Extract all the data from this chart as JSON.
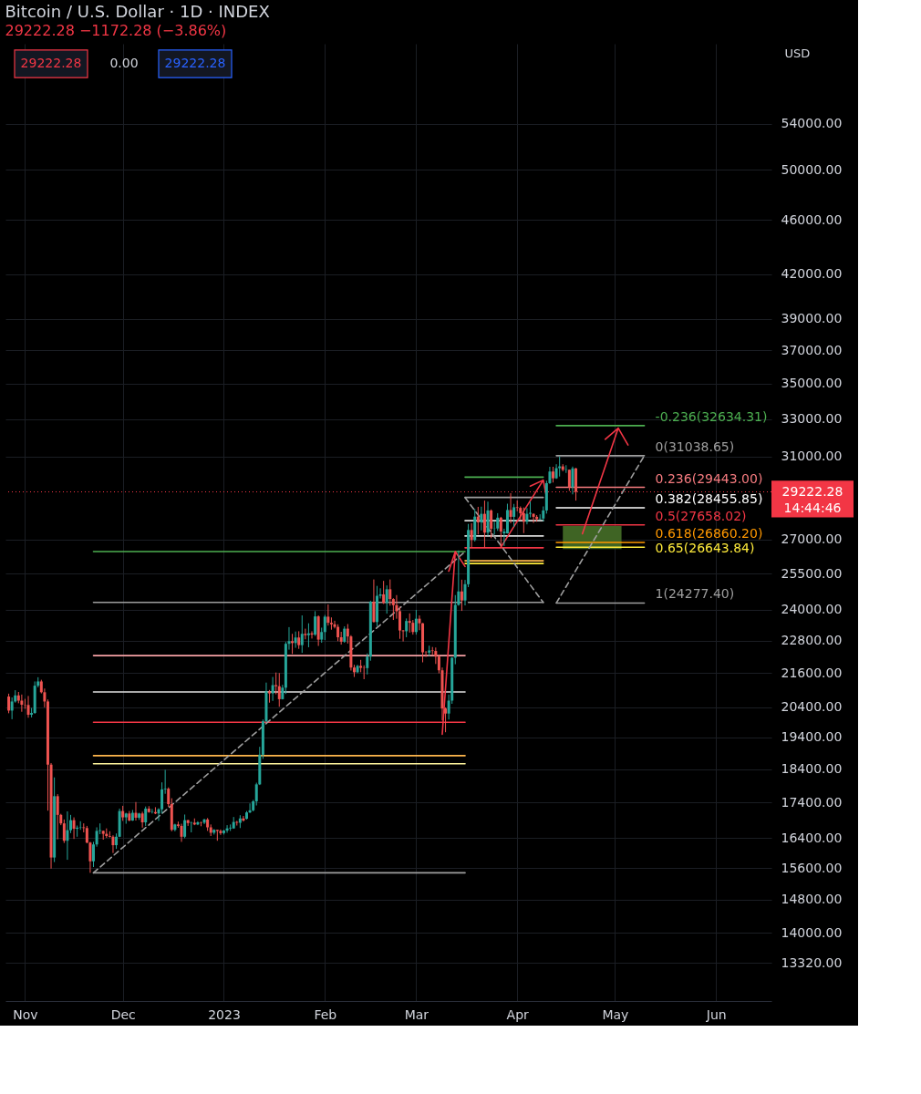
{
  "chart_data": {
    "type": "candlestick",
    "title": "Bitcoin / U.S. Dollar · 1D · INDEX",
    "subtitle": "29222.28 −1172.28 (−3.86%)",
    "ylabel": "USD",
    "annotations": [
      "29222.28",
      "0.00",
      "29222.28",
      "14:44:46"
    ],
    "xlim": [
      "2022-10-26",
      "2023-06-18"
    ],
    "xticks": [
      {
        "value": "2022-11-01",
        "label": "Nov"
      },
      {
        "value": "2022-12-01",
        "label": "Dec"
      },
      {
        "value": "2023-01-01",
        "label": "2023"
      },
      {
        "value": "2023-02-01",
        "label": "Feb"
      },
      {
        "value": "2023-03-01",
        "label": "Mar"
      },
      {
        "value": "2023-04-01",
        "label": "Apr"
      },
      {
        "value": "2023-05-01",
        "label": "May"
      },
      {
        "value": "2023-06-01",
        "label": "Jun"
      }
    ],
    "ylim": [
      12500,
      61700
    ],
    "log": true,
    "grid": true,
    "yticks": [
      {
        "value": 13320,
        "label": "13320.00"
      },
      {
        "value": 14000,
        "label": "14000.00"
      },
      {
        "value": 14800,
        "label": "14800.00"
      },
      {
        "value": 15600,
        "label": "15600.00"
      },
      {
        "value": 16400,
        "label": "16400.00"
      },
      {
        "value": 17400,
        "label": "17400.00"
      },
      {
        "value": 18400,
        "label": "18400.00"
      },
      {
        "value": 19400,
        "label": "19400.00"
      },
      {
        "value": 20400,
        "label": "20400.00"
      },
      {
        "value": 21600,
        "label": "21600.00"
      },
      {
        "value": 22800,
        "label": "22800.00"
      },
      {
        "value": 24000,
        "label": "24000.00"
      },
      {
        "value": 25500,
        "label": "25500.00"
      },
      {
        "value": 27000,
        "label": "27000.00"
      },
      {
        "value": 31000,
        "label": "31000.00"
      },
      {
        "value": 33000,
        "label": "33000.00"
      },
      {
        "value": 35000,
        "label": "35000.00"
      },
      {
        "value": 37000,
        "label": "37000.00"
      },
      {
        "value": 39000,
        "label": "39000.00"
      },
      {
        "value": 42000,
        "label": "42000.00"
      },
      {
        "value": 46000,
        "label": "46000.00"
      },
      {
        "value": 50000,
        "label": "50000.00"
      },
      {
        "value": 54000,
        "label": "54000.00"
      }
    ],
    "ref_lines": [
      {
        "axis": "y",
        "value": 29222.28,
        "label": "29222.28",
        "color": "#f23645",
        "line_style": "dotted"
      }
    ],
    "series": [
      {
        "type": "line",
        "color": "#3f6424",
        "x": [
          "2023-04-15",
          "2023-05-03"
        ],
        "values": [
          null,
          null
        ],
        "lower": [
          26560,
          26560
        ],
        "upper": [
          27600,
          27600
        ]
      },
      {
        "type": "line",
        "color": "#9e9e9e",
        "x": [
          "2022-11-22",
          "2023-03-16"
        ],
        "values": [
          15480,
          15480
        ]
      },
      {
        "type": "line",
        "color": "#fff59d",
        "x": [
          "2022-11-22",
          "2023-03-16"
        ],
        "values": [
          18570,
          18570
        ]
      },
      {
        "type": "line",
        "color": "#ffb74d",
        "x": [
          "2022-11-22",
          "2023-03-16"
        ],
        "values": [
          18820,
          18820
        ]
      },
      {
        "type": "line",
        "color": "#f23645",
        "x": [
          "2022-11-22",
          "2023-03-16"
        ],
        "values": [
          19900,
          19900
        ]
      },
      {
        "type": "line",
        "color": "#e0e0e0",
        "x": [
          "2022-11-22",
          "2023-03-16"
        ],
        "values": [
          20930,
          20930
        ]
      },
      {
        "type": "line",
        "color": "#f7a1a5",
        "x": [
          "2022-11-22",
          "2023-03-16"
        ],
        "values": [
          22240,
          22240
        ]
      },
      {
        "type": "line",
        "color": "#9e9e9e",
        "x": [
          "2022-11-22",
          "2023-03-15"
        ],
        "values": [
          24300,
          24300
        ]
      },
      {
        "type": "line",
        "color": "#4caf50",
        "x": [
          "2022-11-22",
          "2023-03-16"
        ],
        "values": [
          26450,
          26450
        ]
      },
      {
        "type": "line",
        "color": "#9e9e9e",
        "line_style": "dashed",
        "x": [
          "2022-11-22",
          "2023-03-16"
        ],
        "values": [
          15480,
          26450
        ]
      },
      {
        "type": "line",
        "color": "#4caf50",
        "x": [
          "2023-03-16",
          "2023-04-09"
        ],
        "values": [
          29950,
          29950
        ]
      },
      {
        "type": "line",
        "color": "#9e9e9e",
        "x": [
          "2023-03-16",
          "2023-04-09"
        ],
        "values": [
          28950,
          28950
        ]
      },
      {
        "type": "line",
        "color": "#d9d9d9",
        "x": [
          "2023-03-16",
          "2023-04-09"
        ],
        "values": [
          27850,
          27850
        ]
      },
      {
        "type": "line",
        "color": "#d9d9d9",
        "x": [
          "2023-03-16",
          "2023-04-09"
        ],
        "values": [
          27150,
          27150
        ]
      },
      {
        "type": "line",
        "color": "#f23645",
        "x": [
          "2023-03-16",
          "2023-04-09"
        ],
        "values": [
          26620,
          26620
        ]
      },
      {
        "type": "line",
        "color": "#ffb74d",
        "x": [
          "2023-03-16",
          "2023-04-09"
        ],
        "values": [
          26050,
          26050
        ]
      },
      {
        "type": "line",
        "color": "#ffeb3b",
        "x": [
          "2023-03-16",
          "2023-04-09"
        ],
        "values": [
          25930,
          25930
        ]
      },
      {
        "type": "line",
        "color": "#9e9e9e",
        "x": [
          "2023-03-17",
          "2023-04-09"
        ],
        "values": [
          24300,
          24300
        ]
      },
      {
        "type": "line",
        "color": "#9e9e9e",
        "line_style": "dashed",
        "x": [
          "2023-03-16",
          "2023-04-09"
        ],
        "values": [
          28950,
          24300
        ]
      },
      {
        "type": "line",
        "name": "-0.236(32634.31)",
        "color": "#4caf50",
        "x": [
          "2023-04-13",
          "2023-05-10"
        ],
        "values": [
          32634.31,
          32634.31
        ]
      },
      {
        "type": "line",
        "name": "0(31038.65)",
        "color": "#9e9e9e",
        "x": [
          "2023-04-13",
          "2023-05-10"
        ],
        "values": [
          31038.65,
          31038.65
        ]
      },
      {
        "type": "line",
        "name": "0.236(29443.00)",
        "color": "#f77c80",
        "x": [
          "2023-04-13",
          "2023-05-10"
        ],
        "values": [
          29443.0,
          29443.0
        ]
      },
      {
        "type": "line",
        "name": "0.382(28455.85)",
        "color": "#ffffff",
        "x": [
          "2023-04-13",
          "2023-05-10"
        ],
        "values": [
          28455.85,
          28455.85
        ]
      },
      {
        "type": "line",
        "name": "0.5(27658.02)",
        "color": "#f23645",
        "x": [
          "2023-04-13",
          "2023-05-10"
        ],
        "values": [
          27658.02,
          27658.02
        ]
      },
      {
        "type": "line",
        "name": "0.618(26860.20)",
        "color": "#ff9800",
        "x": [
          "2023-04-13",
          "2023-05-10"
        ],
        "values": [
          26860.2,
          26860.2
        ]
      },
      {
        "type": "line",
        "name": "0.65(26643.84)",
        "color": "#ffeb3b",
        "x": [
          "2023-04-13",
          "2023-05-10"
        ],
        "values": [
          26643.84,
          26643.84
        ]
      },
      {
        "type": "line",
        "name": "1(24277.40)",
        "color": "#9e9e9e",
        "x": [
          "2023-04-13",
          "2023-05-10"
        ],
        "values": [
          24277.4,
          24277.4
        ]
      },
      {
        "type": "line",
        "color": "#9e9e9e",
        "line_style": "dashed",
        "x": [
          "2023-04-13",
          "2023-05-10"
        ],
        "values": [
          24277.4,
          31038.65
        ]
      },
      {
        "color": "#26a69a",
        "x": [
          "2022-10-28",
          "2022-10-29",
          "2022-11-03",
          "2022-11-04",
          "2022-11-05",
          "2022-11-10",
          "2022-11-14",
          "2022-11-15",
          "2022-11-17",
          "2022-11-18",
          "2022-11-22",
          "2022-11-23",
          "2022-11-24",
          "2022-11-29",
          "2022-11-30",
          "2022-12-02",
          "2022-12-04",
          "2022-12-06",
          "2022-12-08",
          "2022-12-10",
          "2022-12-12",
          "2022-12-13",
          "2022-12-14",
          "2022-12-17",
          "2022-12-20",
          "2022-12-22",
          "2022-12-24",
          "2022-12-26",
          "2022-12-29",
          "2023-01-01",
          "2023-01-02",
          "2023-01-03",
          "2023-01-04",
          "2023-01-06",
          "2023-01-08",
          "2023-01-09",
          "2023-01-10",
          "2023-01-11",
          "2023-01-12",
          "2023-01-13",
          "2023-01-14",
          "2023-01-16",
          "2023-01-19",
          "2023-01-20",
          "2023-01-21",
          "2023-01-23",
          "2023-01-25",
          "2023-01-27",
          "2023-01-29",
          "2023-01-31",
          "2023-02-01",
          "2023-02-07",
          "2023-02-11",
          "2023-02-14",
          "2023-02-15",
          "2023-02-17",
          "2023-02-18",
          "2023-02-20",
          "2023-02-26",
          "2023-03-01",
          "2023-03-05",
          "2023-03-11",
          "2023-03-12",
          "2023-03-13",
          "2023-03-14",
          "2023-03-16",
          "2023-03-17",
          "2023-03-19",
          "2023-03-21",
          "2023-03-23",
          "2023-03-25",
          "2023-03-26",
          "2023-03-28",
          "2023-03-29",
          "2023-03-31",
          "2023-04-04",
          "2023-04-05",
          "2023-04-08",
          "2023-04-09",
          "2023-04-10",
          "2023-04-11",
          "2023-04-13",
          "2023-04-14",
          "2023-04-16",
          "2023-04-18"
        ],
        "ohlc": [
          [
            20290,
            20740,
            20000,
            20600
          ],
          [
            20600,
            20990,
            20560,
            20810
          ],
          [
            20150,
            20380,
            20060,
            20210
          ],
          [
            20210,
            21300,
            20180,
            21150
          ],
          [
            21150,
            21450,
            21090,
            21300
          ],
          [
            15880,
            18150,
            15760,
            17590
          ],
          [
            16330,
            17150,
            15820,
            16620
          ],
          [
            16620,
            17050,
            16540,
            16900
          ],
          [
            16660,
            16750,
            16440,
            16690
          ],
          [
            16690,
            16870,
            16630,
            16700
          ],
          [
            15780,
            16300,
            15630,
            16230
          ],
          [
            16230,
            16700,
            16170,
            16600
          ],
          [
            16600,
            16810,
            16510,
            16620
          ],
          [
            16210,
            16530,
            16110,
            16440
          ],
          [
            16440,
            17230,
            16430,
            17160
          ],
          [
            16980,
            17110,
            16800,
            17090
          ],
          [
            16890,
            17190,
            16880,
            17110
          ],
          [
            16970,
            17110,
            16910,
            17090
          ],
          [
            16840,
            17290,
            16740,
            17230
          ],
          [
            17130,
            17220,
            17090,
            17140
          ],
          [
            17090,
            17240,
            16880,
            17210
          ],
          [
            17210,
            18000,
            17090,
            17790
          ],
          [
            17790,
            18380,
            17660,
            17810
          ],
          [
            16630,
            16800,
            16590,
            16780
          ],
          [
            16440,
            17060,
            16400,
            16900
          ],
          [
            16820,
            16860,
            16560,
            16830
          ],
          [
            16780,
            16870,
            16760,
            16840
          ],
          [
            16830,
            16940,
            16790,
            16920
          ],
          [
            16550,
            16650,
            16500,
            16630
          ],
          [
            16540,
            16630,
            16500,
            16610
          ],
          [
            16610,
            16760,
            16550,
            16670
          ],
          [
            16670,
            16780,
            16600,
            16690
          ],
          [
            16670,
            16990,
            16660,
            16850
          ],
          [
            16830,
            17040,
            16680,
            16950
          ],
          [
            16940,
            17160,
            16920,
            17120
          ],
          [
            17120,
            17380,
            17100,
            17180
          ],
          [
            17180,
            17480,
            17150,
            17440
          ],
          [
            17440,
            17990,
            17320,
            17940
          ],
          [
            17940,
            19100,
            17920,
            18850
          ],
          [
            18850,
            19990,
            18720,
            19930
          ],
          [
            19930,
            21260,
            19900,
            20950
          ],
          [
            20880,
            21460,
            20620,
            21170
          ],
          [
            20680,
            21180,
            20670,
            21080
          ],
          [
            21080,
            22750,
            20860,
            22680
          ],
          [
            22680,
            23320,
            22460,
            22780
          ],
          [
            22710,
            23150,
            22530,
            22920
          ],
          [
            22630,
            23780,
            22340,
            23060
          ],
          [
            23010,
            23470,
            22550,
            23080
          ],
          [
            23030,
            23950,
            22980,
            23740
          ],
          [
            22840,
            23300,
            22720,
            23130
          ],
          [
            23130,
            23800,
            22820,
            23730
          ],
          [
            22760,
            23350,
            22720,
            23260
          ],
          [
            21630,
            21900,
            21600,
            21860
          ],
          [
            21780,
            22320,
            21550,
            22200
          ],
          [
            22200,
            24370,
            22050,
            24330
          ],
          [
            23520,
            24980,
            23360,
            24570
          ],
          [
            24570,
            24880,
            24460,
            24630
          ],
          [
            24280,
            25000,
            23850,
            24840
          ],
          [
            23160,
            23660,
            22930,
            23560
          ],
          [
            23130,
            24000,
            23030,
            23650
          ],
          [
            22350,
            22610,
            22220,
            22430
          ],
          [
            20190,
            20840,
            19990,
            20630
          ],
          [
            20630,
            22180,
            20520,
            22160
          ],
          [
            22160,
            24600,
            21920,
            24200
          ],
          [
            24200,
            26500,
            24170,
            24750
          ],
          [
            24380,
            25230,
            24180,
            25050
          ],
          [
            25050,
            27700,
            24930,
            27420
          ],
          [
            26970,
            28400,
            26900,
            28040
          ],
          [
            27770,
            28510,
            27400,
            28170
          ],
          [
            27300,
            28750,
            27160,
            28330
          ],
          [
            27480,
            27800,
            27210,
            27490
          ],
          [
            27490,
            28200,
            27380,
            27990
          ],
          [
            27350,
            27480,
            26700,
            27270
          ],
          [
            27270,
            28650,
            27260,
            28350
          ],
          [
            28030,
            28640,
            27560,
            28480
          ],
          [
            27800,
            28440,
            27680,
            28170
          ],
          [
            28170,
            28750,
            28000,
            28220
          ],
          [
            27920,
            28150,
            27890,
            27950
          ],
          [
            27950,
            28520,
            27820,
            28330
          ],
          [
            28330,
            29770,
            28180,
            29650
          ],
          [
            29650,
            30470,
            29610,
            30230
          ],
          [
            29890,
            30600,
            29860,
            30400
          ],
          [
            30400,
            31000,
            29980,
            30490
          ],
          [
            30320,
            30550,
            30160,
            30340
          ],
          [
            29450,
            30480,
            29100,
            30390
          ]
        ]
      },
      {
        "color": "#ef5350",
        "x": [
          "2022-10-27",
          "2022-10-30",
          "2022-10-31",
          "2022-11-01",
          "2022-11-02",
          "2022-11-06",
          "2022-11-07",
          "2022-11-08",
          "2022-11-09",
          "2022-11-11",
          "2022-11-12",
          "2022-11-13",
          "2022-11-16",
          "2022-11-19",
          "2022-11-20",
          "2022-11-21",
          "2022-11-25",
          "2022-11-26",
          "2022-11-27",
          "2022-11-28",
          "2022-12-01",
          "2022-12-03",
          "2022-12-05",
          "2022-12-07",
          "2022-12-09",
          "2022-12-11",
          "2022-12-15",
          "2022-12-16",
          "2022-12-18",
          "2022-12-19",
          "2022-12-21",
          "2022-12-23",
          "2022-12-25",
          "2022-12-27",
          "2022-12-28",
          "2022-12-30",
          "2022-12-31",
          "2023-01-05",
          "2023-01-07",
          "2023-01-15",
          "2023-01-17",
          "2023-01-18",
          "2023-01-22",
          "2023-01-24",
          "2023-01-26",
          "2023-01-28",
          "2023-01-30",
          "2023-02-02",
          "2023-02-03",
          "2023-02-04",
          "2023-02-05",
          "2023-02-06",
          "2023-02-08",
          "2023-02-09",
          "2023-02-10",
          "2023-02-12",
          "2023-02-13",
          "2023-02-16",
          "2023-02-19",
          "2023-02-21",
          "2023-02-22",
          "2023-02-23",
          "2023-02-24",
          "2023-02-25",
          "2023-02-27",
          "2023-02-28",
          "2023-03-02",
          "2023-03-03",
          "2023-03-04",
          "2023-03-06",
          "2023-03-07",
          "2023-03-08",
          "2023-03-09",
          "2023-03-10",
          "2023-03-15",
          "2023-03-18",
          "2023-03-20",
          "2023-03-22",
          "2023-03-24",
          "2023-03-27",
          "2023-03-30",
          "2023-04-01",
          "2023-04-02",
          "2023-04-03",
          "2023-04-06",
          "2023-04-07",
          "2023-04-12",
          "2023-04-15",
          "2023-04-17",
          "2023-04-19"
        ],
        "ohlc": [
          [
            20770,
            20870,
            20200,
            20290
          ],
          [
            20810,
            20930,
            20540,
            20630
          ],
          [
            20630,
            20840,
            20250,
            20490
          ],
          [
            20490,
            20690,
            20350,
            20480
          ],
          [
            20480,
            20790,
            20050,
            20150
          ],
          [
            21300,
            21360,
            20880,
            20920
          ],
          [
            20920,
            21050,
            20400,
            20600
          ],
          [
            20600,
            20670,
            17170,
            18540
          ],
          [
            18540,
            18590,
            15590,
            15880
          ],
          [
            17590,
            17650,
            16370,
            17050
          ],
          [
            17050,
            17080,
            16760,
            16810
          ],
          [
            16810,
            16920,
            16270,
            16330
          ],
          [
            16900,
            16980,
            16380,
            16660
          ],
          [
            16700,
            16810,
            16560,
            16680
          ],
          [
            16680,
            16740,
            16260,
            16280
          ],
          [
            16280,
            16300,
            15480,
            15780
          ],
          [
            16600,
            16610,
            16360,
            16520
          ],
          [
            16520,
            16670,
            16410,
            16460
          ],
          [
            16460,
            16590,
            16420,
            16440
          ],
          [
            16440,
            16480,
            16000,
            16210
          ],
          [
            17160,
            17310,
            16880,
            16980
          ],
          [
            17090,
            17160,
            16870,
            16890
          ],
          [
            17110,
            17420,
            16890,
            16970
          ],
          [
            17090,
            17140,
            16690,
            16840
          ],
          [
            17230,
            17300,
            17110,
            17130
          ],
          [
            17130,
            17270,
            17070,
            17090
          ],
          [
            17810,
            17850,
            17280,
            17360
          ],
          [
            17360,
            17530,
            16590,
            16630
          ],
          [
            16780,
            16860,
            16690,
            16740
          ],
          [
            16740,
            16800,
            16300,
            16440
          ],
          [
            16900,
            16910,
            16740,
            16820
          ],
          [
            16830,
            16950,
            16760,
            16780
          ],
          [
            16840,
            16860,
            16730,
            16830
          ],
          [
            16920,
            16960,
            16600,
            16700
          ],
          [
            16700,
            16780,
            16460,
            16550
          ],
          [
            16630,
            16630,
            16330,
            16600
          ],
          [
            16600,
            16640,
            16490,
            16540
          ],
          [
            16850,
            16880,
            16750,
            16830
          ],
          [
            16950,
            17020,
            16860,
            16890
          ],
          [
            20950,
            21000,
            20560,
            20880
          ],
          [
            21170,
            21620,
            20850,
            21130
          ],
          [
            21130,
            21600,
            20420,
            20680
          ],
          [
            22780,
            23060,
            22300,
            22710
          ],
          [
            22920,
            23160,
            22490,
            22630
          ],
          [
            23060,
            23260,
            22850,
            23010
          ],
          [
            23080,
            23160,
            22880,
            23030
          ],
          [
            23740,
            23780,
            22600,
            22840
          ],
          [
            23730,
            24220,
            23380,
            23490
          ],
          [
            23490,
            23700,
            23220,
            23430
          ],
          [
            23430,
            23570,
            23270,
            23330
          ],
          [
            23330,
            23430,
            22780,
            22930
          ],
          [
            22930,
            23140,
            22650,
            22760
          ],
          [
            23260,
            23440,
            22690,
            22960
          ],
          [
            22960,
            23010,
            21690,
            21800
          ],
          [
            21800,
            21900,
            21460,
            21630
          ],
          [
            21860,
            22080,
            21630,
            21790
          ],
          [
            21790,
            21880,
            21380,
            21780
          ],
          [
            24330,
            25250,
            23500,
            23520
          ],
          [
            24630,
            25190,
            24240,
            24280
          ],
          [
            24840,
            25250,
            24170,
            24440
          ],
          [
            24440,
            24470,
            23600,
            24190
          ],
          [
            24190,
            24600,
            23650,
            23950
          ],
          [
            23950,
            24130,
            22870,
            23190
          ],
          [
            23190,
            23210,
            22770,
            23160
          ],
          [
            23560,
            23860,
            23110,
            23490
          ],
          [
            23490,
            23600,
            23030,
            23130
          ],
          [
            23650,
            23780,
            23200,
            23470
          ],
          [
            23470,
            23480,
            21990,
            22360
          ],
          [
            22360,
            22410,
            22190,
            22350
          ],
          [
            22430,
            22560,
            22260,
            22410
          ],
          [
            22410,
            22540,
            21930,
            22200
          ],
          [
            22200,
            22270,
            21590,
            21700
          ],
          [
            21700,
            21800,
            19960,
            20360
          ],
          [
            20360,
            20400,
            19570,
            20190
          ],
          [
            24750,
            25240,
            23960,
            24380
          ],
          [
            27420,
            27730,
            26640,
            26970
          ],
          [
            28040,
            28500,
            27220,
            27770
          ],
          [
            28170,
            28800,
            26630,
            27300
          ],
          [
            28330,
            28380,
            27050,
            27480
          ],
          [
            27990,
            28030,
            26620,
            27350
          ],
          [
            28350,
            29160,
            27730,
            28030
          ],
          [
            28480,
            28810,
            28290,
            28450
          ],
          [
            28450,
            28520,
            27870,
            28200
          ],
          [
            28200,
            28470,
            27280,
            27800
          ],
          [
            28170,
            28190,
            27750,
            28030
          ],
          [
            28030,
            28110,
            27800,
            27920
          ],
          [
            30230,
            30470,
            29680,
            29890
          ],
          [
            30490,
            30600,
            30240,
            30320
          ],
          [
            30320,
            30320,
            29270,
            29450
          ],
          [
            30390,
            30410,
            28800,
            29222.28
          ]
        ]
      },
      {
        "type": "line",
        "color": "#f23645",
        "x": [
          "2023-03-09",
          "2023-03-13",
          "2023-03-11",
          "2023-03-13",
          "2023-03-16"
        ],
        "values": [
          19500,
          26450,
          25600,
          26450,
          25800
        ]
      },
      {
        "type": "line",
        "color": "#f23645",
        "x": [
          "2023-03-27",
          "2023-04-09",
          "2023-04-05",
          "2023-04-09",
          "2023-04-10"
        ],
        "values": [
          26650,
          29800,
          29500,
          29800,
          28950
        ]
      },
      {
        "type": "line",
        "color": "#f23645",
        "x": [
          "2023-04-21",
          "2023-05-02",
          "2023-04-28",
          "2023-05-02",
          "2023-05-05"
        ],
        "values": [
          27250,
          32500,
          31900,
          32500,
          31600
        ]
      }
    ]
  }
}
